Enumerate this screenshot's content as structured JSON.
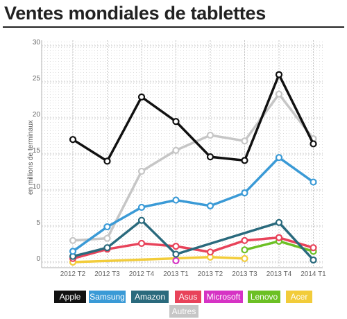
{
  "title": "Ventes mondiales de tablettes",
  "chart_data": {
    "type": "line",
    "ylabel": "en millions de terminaux",
    "ylim": [
      0,
      30
    ],
    "yticks": [
      0,
      5,
      10,
      15,
      20,
      25,
      30
    ],
    "grid": true,
    "legend_placement": "bottom",
    "categories": [
      "2012 T2",
      "2012 T3",
      "2012 T4",
      "2013 T1",
      "2013 T2",
      "2013 T3",
      "2013 T4",
      "2014 T1"
    ],
    "series": [
      {
        "name": "Apple",
        "color": "#111111",
        "values": [
          17.0,
          14.0,
          22.9,
          19.5,
          14.6,
          14.1,
          26.0,
          16.4
        ]
      },
      {
        "name": "Samsung",
        "color": "#3a9ad6",
        "values": [
          1.5,
          4.9,
          7.6,
          8.6,
          7.8,
          9.6,
          14.5,
          11.1
        ]
      },
      {
        "name": "Amazon",
        "color": "#2a6a7d",
        "values": [
          0.8,
          2.0,
          5.8,
          1.1,
          null,
          null,
          5.5,
          0.3
        ]
      },
      {
        "name": "Asus",
        "color": "#e8435a",
        "values": [
          0.5,
          1.8,
          2.6,
          2.2,
          1.4,
          3.0,
          3.4,
          2.0
        ]
      },
      {
        "name": "Microsoft",
        "color": "#d633c4",
        "values": [
          null,
          null,
          null,
          0.2,
          null,
          null,
          null,
          null
        ]
      },
      {
        "name": "Lenovo",
        "color": "#6cc024",
        "values": [
          null,
          null,
          null,
          null,
          null,
          1.7,
          2.9,
          1.5
        ]
      },
      {
        "name": "Acer",
        "color": "#f2cc3a",
        "values": [
          0.0,
          null,
          null,
          null,
          0.7,
          0.5,
          null,
          null
        ]
      },
      {
        "name": "Autres",
        "color": "#c6c6c6",
        "values": [
          3.0,
          3.3,
          12.6,
          15.5,
          17.6,
          16.8,
          23.3,
          17.1
        ]
      }
    ]
  }
}
